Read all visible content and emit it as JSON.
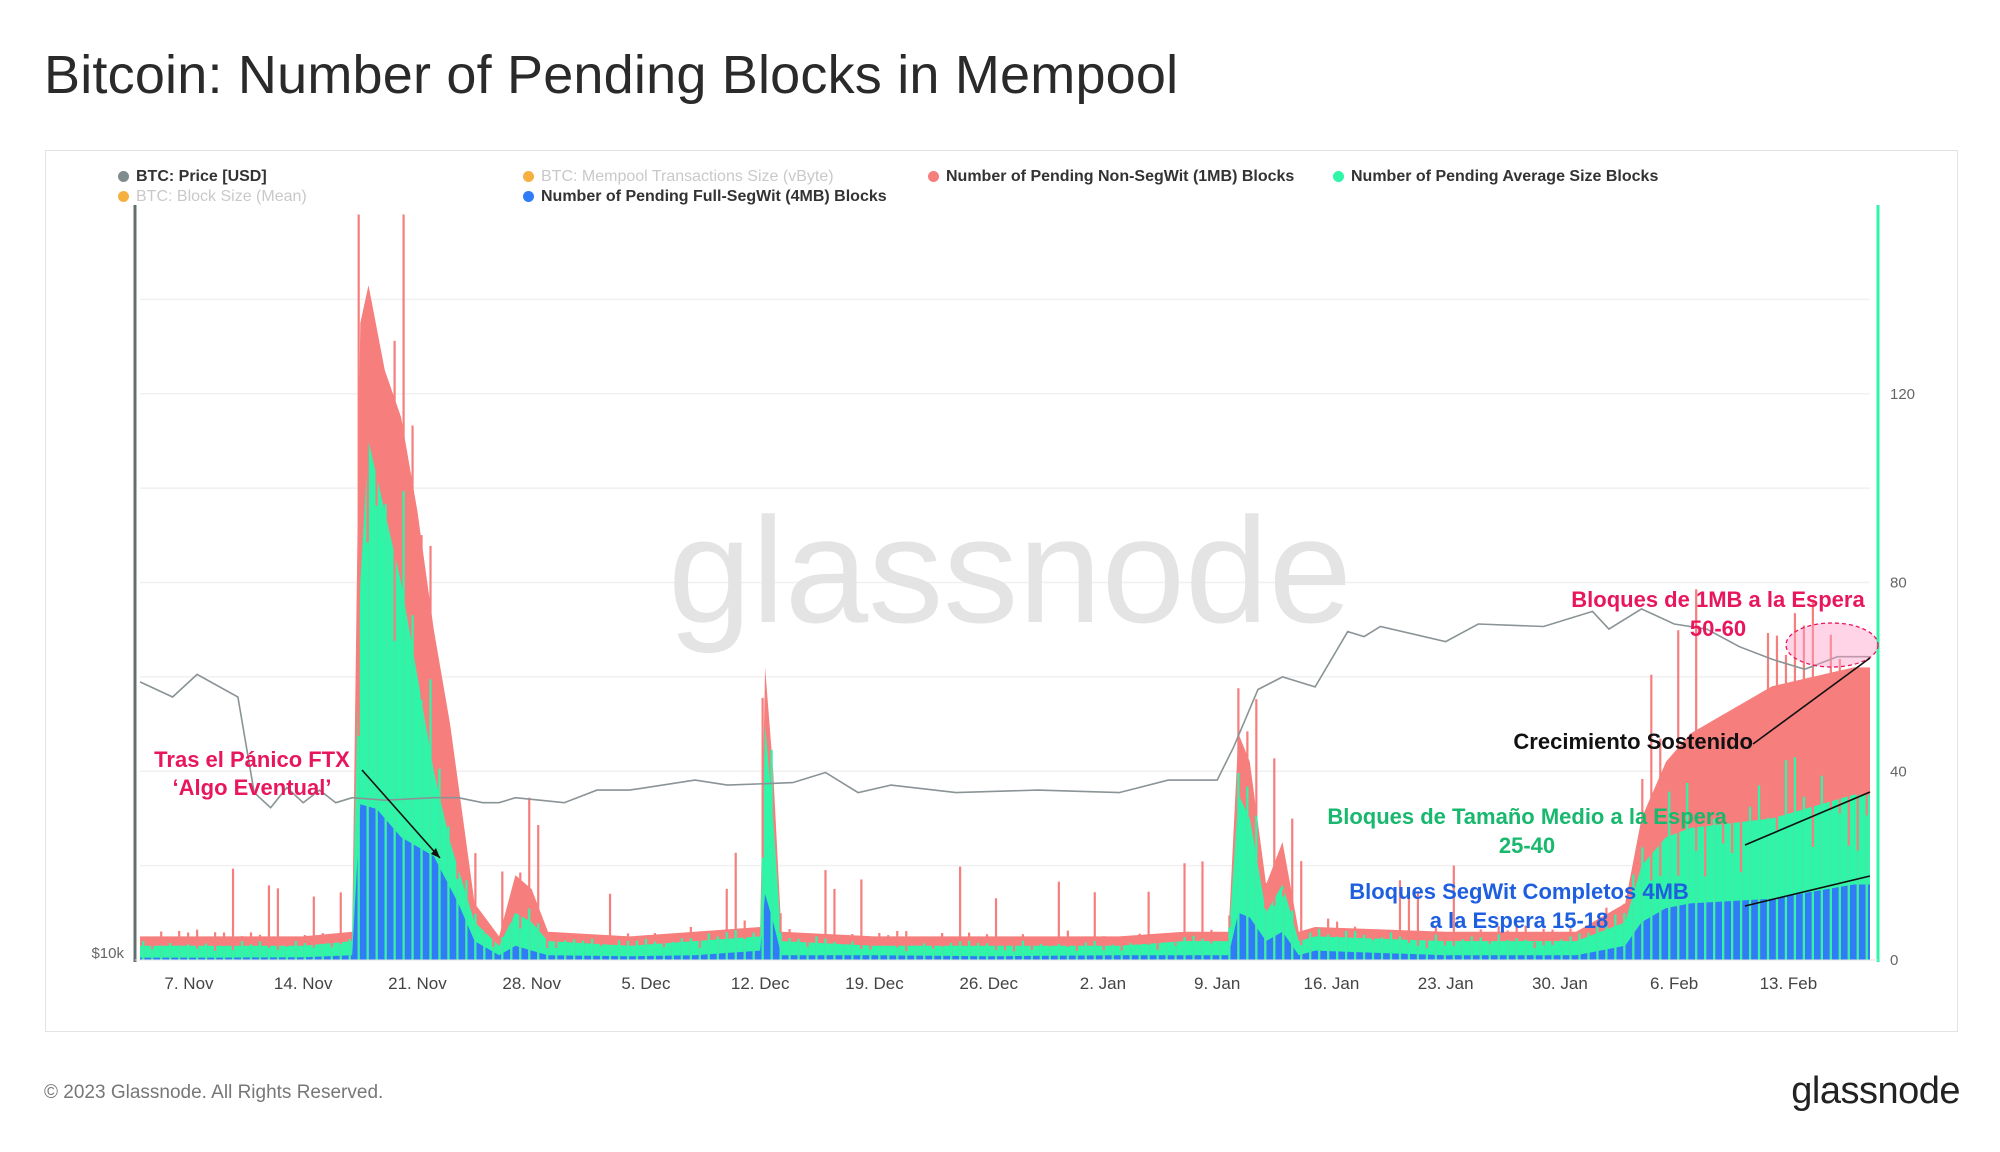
{
  "page": {
    "title": "Bitcoin: Number of Pending Blocks in Mempool",
    "copyright": "© 2023 Glassnode. All Rights Reserved.",
    "logo": "glassnode",
    "watermark": "glassnode"
  },
  "legend": [
    {
      "label": "BTC: Price [USD]",
      "color": "#7f8c8d",
      "faded": false
    },
    {
      "label": "BTC: Mempool Transactions Size (vByte)",
      "color": "#f39c12",
      "faded": true
    },
    {
      "label": "Number of Pending Non-SegWit (1MB) Blocks",
      "color": "#f67e7d",
      "faded": false
    },
    {
      "label": "Number of Pending Average Size Blocks",
      "color": "#2ff5a8",
      "faded": false
    },
    {
      "label": "BTC: Block Size (Mean)",
      "color": "#f39c12",
      "faded": true
    },
    {
      "label": "Number of Pending Full-SegWit (4MB) Blocks",
      "color": "#2f7cf6",
      "faded": false
    }
  ],
  "annotations": {
    "ftx_line1": "Tras el Pánico FTX",
    "ftx_line2": "‘Algo Eventual’",
    "mb1_line1": "Bloques de 1MB a la Espera",
    "mb1_line2": "50-60",
    "growth": "Crecimiento Sostenido",
    "avg_line1": "Bloques de Tamaño Medio a la Espera",
    "avg_line2": "25-40",
    "segwit_line1": "Bloques SegWit Completos 4MB",
    "segwit_line2": "a la Espera 15-18"
  },
  "chart_data": {
    "type": "area",
    "x_ticks": [
      "7. Nov",
      "14. Nov",
      "21. Nov",
      "28. Nov",
      "5. Dec",
      "12. Dec",
      "19. Dec",
      "26. Dec",
      "2. Jan",
      "9. Jan",
      "16. Jan",
      "23. Jan",
      "30. Jan",
      "6. Feb",
      "13. Feb"
    ],
    "x_range_days": [
      0,
      106
    ],
    "y_right_ticks": [
      0,
      40,
      80,
      120
    ],
    "y_right_range": [
      0,
      160
    ],
    "y_left_tick": "$10k",
    "colors": {
      "non_segwit": "#f67e7d",
      "average": "#2ff5a8",
      "full_segwit": "#2f7cf6",
      "price": "#8a9396"
    },
    "series": [
      {
        "name": "Number of Pending Full-SegWit (4MB) Blocks",
        "x": [
          0,
          5,
          10,
          13,
          13.5,
          14.5,
          16,
          18,
          19.5,
          20.5,
          22,
          23,
          24,
          25,
          30,
          34,
          38,
          38.3,
          38.8,
          39.3,
          45,
          52,
          60,
          64,
          66.7,
          67.3,
          68,
          69,
          70,
          71,
          72,
          80,
          88,
          91,
          92,
          93.5,
          95,
          100,
          105,
          106
        ],
        "values": [
          0.5,
          0.5,
          0.6,
          1,
          33,
          32,
          26,
          22,
          12,
          4,
          1,
          3,
          2,
          1,
          0.8,
          1,
          2,
          14,
          8,
          1,
          1,
          0.8,
          1,
          1,
          1,
          10,
          9,
          4,
          6,
          1,
          2,
          1,
          1,
          3,
          8,
          11,
          12,
          13,
          16,
          16
        ]
      },
      {
        "name": "Number of Pending Average Size Blocks",
        "x": [
          0,
          5,
          10,
          13,
          13.5,
          14,
          15,
          16,
          17,
          18,
          19,
          20.5,
          22,
          23,
          24,
          25,
          30,
          34,
          38,
          38.3,
          38.8,
          39.3,
          45,
          52,
          60,
          64,
          66.7,
          67.3,
          68,
          69,
          70,
          71,
          72,
          80,
          88,
          91,
          92,
          93.5,
          95,
          100,
          105,
          106
        ],
        "values": [
          3,
          3,
          3,
          4,
          80,
          110,
          95,
          80,
          60,
          40,
          25,
          8,
          3,
          10,
          8,
          4,
          3,
          4,
          5,
          50,
          30,
          4,
          3,
          3,
          3,
          4,
          4,
          35,
          30,
          10,
          16,
          4,
          5,
          4,
          4,
          8,
          20,
          26,
          28,
          30,
          35,
          35
        ]
      },
      {
        "name": "Number of Pending Non-SegWit (1MB) Blocks",
        "x": [
          0,
          5,
          10,
          13,
          13.5,
          14,
          15,
          16,
          17,
          18,
          19,
          20.5,
          22,
          23,
          24,
          25,
          30,
          34,
          38,
          38.3,
          38.8,
          39.3,
          45,
          52,
          60,
          64,
          66.7,
          67.3,
          68,
          69,
          70,
          71,
          72,
          80,
          88,
          91,
          92,
          93.5,
          95,
          100,
          105,
          106
        ],
        "values": [
          5,
          5,
          5,
          6,
          135,
          143,
          125,
          115,
          95,
          70,
          50,
          12,
          5,
          18,
          15,
          6,
          5,
          6,
          7,
          62,
          40,
          6,
          5,
          5,
          5,
          6,
          6,
          48,
          42,
          16,
          25,
          6,
          7,
          6,
          6,
          12,
          30,
          42,
          48,
          58,
          62,
          62
        ]
      },
      {
        "name": "BTC: Price [USD]",
        "x": [
          0,
          2,
          3.5,
          6,
          7,
          8,
          9,
          10,
          11,
          12,
          13,
          15,
          18,
          19.5,
          21,
          22,
          23,
          26,
          28,
          30,
          34,
          36,
          40,
          42,
          43,
          44,
          46,
          50,
          55,
          60,
          63,
          66,
          67,
          68.5,
          70,
          72,
          74,
          75,
          76,
          80,
          82,
          86,
          89,
          90,
          92,
          94,
          96,
          98,
          100,
          102,
          104,
          106
        ],
        "values": [
          20.9,
          20.6,
          21.2,
          20.6,
          16.5,
          16.2,
          16.7,
          16.4,
          16.6,
          16.4,
          16.3,
          16.5,
          16.3,
          16.6,
          16.1,
          16.4,
          16.3,
          16.4,
          16.6,
          16.9,
          17.0,
          17.1,
          16.9,
          17.6,
          16.9,
          16.8,
          16.8,
          16.8,
          16.6,
          16.8,
          17.0,
          17.3,
          18.3,
          20.9,
          21.1,
          21.0,
          22.9,
          23.0,
          23.1,
          22.8,
          23.2,
          23.4,
          23.7,
          23.3,
          23.8,
          23.5,
          23.0,
          22.6,
          21.8,
          21.7,
          21.9,
          22.2
        ]
      }
    ]
  }
}
